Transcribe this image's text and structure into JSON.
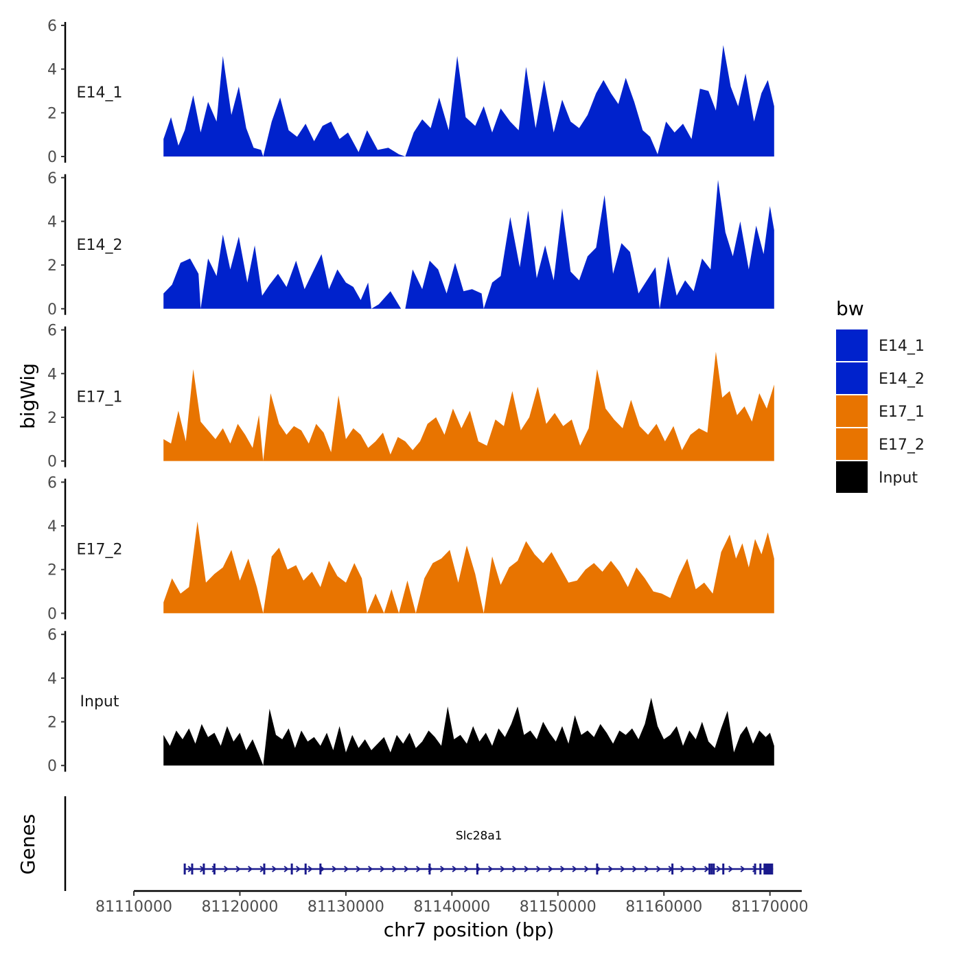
{
  "chart_data": {
    "type": "area",
    "chromosome": "chr7",
    "x_range": [
      81112800,
      81170400
    ],
    "xlim": [
      81110000,
      81173000
    ],
    "ylim": [
      0,
      6
    ],
    "y_ticks": [
      0,
      2,
      4,
      6
    ],
    "x_ticks": [
      81110000,
      81120000,
      81130000,
      81140000,
      81150000,
      81160000,
      81170000
    ],
    "x_tick_labels": [
      "81110000",
      "81120000",
      "81130000",
      "81140000",
      "81150000",
      "81160000",
      "81170000"
    ],
    "xlabel": "chr7 position (bp)",
    "ylabel": "bigWig",
    "genes_label": "Genes",
    "legend": {
      "title": "bw",
      "entries": [
        {
          "name": "E14_1",
          "color": "#0022CC"
        },
        {
          "name": "E14_2",
          "color": "#0022CC"
        },
        {
          "name": "E17_1",
          "color": "#E87400"
        },
        {
          "name": "E17_2",
          "color": "#E87400"
        },
        {
          "name": "Input",
          "color": "#000000"
        }
      ]
    },
    "series": [
      {
        "name": "E14_1",
        "color": "#0022CC",
        "x": [
          81112800,
          81113500,
          81114200,
          81114800,
          81115600,
          81116300,
          81117000,
          81117800,
          81118400,
          81119200,
          81119900,
          81120600,
          81121300,
          81122000,
          81122200,
          81123000,
          81123800,
          81124600,
          81125400,
          81126200,
          81127000,
          81127800,
          81128600,
          81129400,
          81130200,
          81131200,
          81132000,
          81133000,
          81134000,
          81135000,
          81135600,
          81136400,
          81137200,
          81138000,
          81138800,
          81139700,
          81140500,
          81141300,
          81142200,
          81143000,
          81143800,
          81144600,
          81145500,
          81146300,
          81147000,
          81147900,
          81148700,
          81149600,
          81150400,
          81151200,
          81152000,
          81152800,
          81153600,
          81154300,
          81155000,
          81155700,
          81156400,
          81157200,
          81158000,
          81158700,
          81159400,
          81160200,
          81161000,
          81161800,
          81162600,
          81163400,
          81164200,
          81164900,
          81165600,
          81166300,
          81167000,
          81167700,
          81168500,
          81169200,
          81169800,
          81170400
        ],
        "values": [
          0.8,
          1.8,
          0.5,
          1.2,
          2.8,
          1.1,
          2.5,
          1.6,
          4.6,
          1.9,
          3.2,
          1.3,
          0.4,
          0.3,
          0,
          1.6,
          2.7,
          1.2,
          0.9,
          1.5,
          0.7,
          1.4,
          1.6,
          0.8,
          1.1,
          0.2,
          1.2,
          0.3,
          0.4,
          0.1,
          0,
          1.1,
          1.7,
          1.3,
          2.7,
          1.2,
          4.6,
          1.8,
          1.4,
          2.3,
          1.1,
          2.2,
          1.6,
          1.2,
          4.1,
          1.3,
          3.5,
          1.1,
          2.6,
          1.6,
          1.3,
          1.9,
          2.9,
          3.5,
          2.9,
          2.4,
          3.6,
          2.5,
          1.2,
          0.9,
          0.1,
          1.6,
          1.1,
          1.5,
          0.8,
          3.1,
          3.0,
          2.1,
          5.1,
          3.2,
          2.3,
          3.8,
          1.6,
          2.9,
          3.5,
          2.3
        ]
      },
      {
        "name": "E14_2",
        "color": "#0022CC",
        "x": [
          81112800,
          81113600,
          81114400,
          81115300,
          81116100,
          81116300,
          81117000,
          81117800,
          81118400,
          81119100,
          81119900,
          81120700,
          81121400,
          81122100,
          81122800,
          81123600,
          81124400,
          81125300,
          81126100,
          81126900,
          81127700,
          81128400,
          81129200,
          81130000,
          81130700,
          81131400,
          81132100,
          81132400,
          81133100,
          81134200,
          81135200,
          81135600,
          81136300,
          81137200,
          81137900,
          81138700,
          81139500,
          81140300,
          81141100,
          81141900,
          81142800,
          81143000,
          81143800,
          81144600,
          81145500,
          81146400,
          81147200,
          81148000,
          81148800,
          81149600,
          81150400,
          81151200,
          81152000,
          81152800,
          81153600,
          81154400,
          81155200,
          81156000,
          81156800,
          81157600,
          81158400,
          81159200,
          81159600,
          81160400,
          81161200,
          81162000,
          81162800,
          81163600,
          81164400,
          81165100,
          81165800,
          81166500,
          81167200,
          81168000,
          81168700,
          81169400,
          81170000,
          81170400
        ],
        "values": [
          0.7,
          1.1,
          2.1,
          2.3,
          1.6,
          0,
          2.3,
          1.5,
          3.4,
          1.8,
          3.3,
          1.2,
          2.9,
          0.6,
          1.1,
          1.6,
          1.0,
          2.2,
          0.9,
          1.7,
          2.5,
          0.9,
          1.8,
          1.2,
          1.0,
          0.4,
          1.2,
          0,
          0.2,
          0.8,
          0,
          0,
          1.8,
          0.9,
          2.2,
          1.8,
          0.7,
          2.1,
          0.8,
          0.9,
          0.7,
          0,
          1.2,
          1.5,
          4.2,
          1.9,
          4.5,
          1.4,
          2.9,
          1.3,
          4.6,
          1.7,
          1.3,
          2.4,
          2.8,
          5.2,
          1.6,
          3.0,
          2.6,
          0.7,
          1.3,
          1.9,
          0,
          2.4,
          0.6,
          1.3,
          0.8,
          2.3,
          1.8,
          5.9,
          3.5,
          2.4,
          4.0,
          1.8,
          3.8,
          2.5,
          4.7,
          3.6
        ]
      },
      {
        "name": "E17_1",
        "color": "#E87400",
        "x": [
          81112800,
          81113500,
          81114200,
          81114900,
          81115600,
          81116300,
          81117000,
          81117700,
          81118400,
          81119100,
          81119800,
          81120500,
          81121200,
          81121800,
          81122200,
          81122900,
          81123700,
          81124400,
          81125100,
          81125800,
          81126500,
          81127200,
          81127900,
          81128600,
          81129300,
          81130000,
          81130700,
          81131400,
          81132100,
          81132800,
          81133500,
          81134200,
          81134900,
          81135600,
          81136300,
          81137000,
          81137700,
          81138500,
          81139300,
          81140100,
          81140900,
          81141700,
          81142500,
          81143300,
          81144100,
          81144900,
          81145700,
          81146500,
          81147300,
          81148100,
          81148900,
          81149700,
          81150500,
          81151300,
          81152100,
          81152900,
          81153700,
          81154500,
          81155300,
          81156100,
          81156900,
          81157700,
          81158500,
          81159300,
          81160100,
          81160900,
          81161700,
          81162500,
          81163300,
          81164100,
          81164900,
          81165500,
          81166200,
          81166900,
          81167600,
          81168300,
          81169000,
          81169700,
          81170400
        ],
        "values": [
          1.0,
          0.8,
          2.3,
          0.9,
          4.2,
          1.8,
          1.4,
          1.0,
          1.5,
          0.8,
          1.7,
          1.2,
          0.6,
          2.1,
          0,
          3.1,
          1.7,
          1.2,
          1.6,
          1.4,
          0.8,
          1.7,
          1.3,
          0.4,
          3.0,
          1.0,
          1.5,
          1.2,
          0.6,
          0.9,
          1.3,
          0.3,
          1.1,
          0.9,
          0.5,
          0.9,
          1.7,
          2.0,
          1.2,
          2.4,
          1.5,
          2.3,
          0.9,
          0.7,
          1.9,
          1.6,
          3.2,
          1.4,
          2.0,
          3.4,
          1.7,
          2.2,
          1.6,
          1.9,
          0.7,
          1.5,
          4.2,
          2.4,
          1.9,
          1.5,
          2.8,
          1.6,
          1.2,
          1.7,
          0.9,
          1.6,
          0.5,
          1.2,
          1.5,
          1.3,
          5.0,
          2.9,
          3.2,
          2.1,
          2.5,
          1.8,
          3.1,
          2.4,
          3.5
        ]
      },
      {
        "name": "E17_2",
        "color": "#E87400",
        "x": [
          81112800,
          81113600,
          81114400,
          81115200,
          81116000,
          81116800,
          81117600,
          81118400,
          81119200,
          81120000,
          81120800,
          81121600,
          81122200,
          81123000,
          81123700,
          81124500,
          81125300,
          81126000,
          81126800,
          81127600,
          81128400,
          81129200,
          81130000,
          81130800,
          81131500,
          81132000,
          81132800,
          81133600,
          81134300,
          81135000,
          81135800,
          81136600,
          81137400,
          81138200,
          81139000,
          81139800,
          81140600,
          81141400,
          81142200,
          81143000,
          81143800,
          81144600,
          81145400,
          81146200,
          81147000,
          81147800,
          81148600,
          81149400,
          81150200,
          81151000,
          81151800,
          81152600,
          81153400,
          81154200,
          81155000,
          81155800,
          81156600,
          81157400,
          81158200,
          81159000,
          81159800,
          81160600,
          81161400,
          81162200,
          81163000,
          81163800,
          81164600,
          81165400,
          81166200,
          81166800,
          81167400,
          81168000,
          81168600,
          81169200,
          81169800,
          81170400
        ],
        "values": [
          0.5,
          1.6,
          0.9,
          1.2,
          4.2,
          1.4,
          1.8,
          2.1,
          2.9,
          1.5,
          2.5,
          1.2,
          0,
          2.6,
          3.0,
          2.0,
          2.2,
          1.5,
          1.9,
          1.2,
          2.4,
          1.7,
          1.4,
          2.3,
          1.6,
          0,
          0.9,
          0,
          1.1,
          0,
          1.5,
          0,
          1.6,
          2.3,
          2.5,
          2.9,
          1.4,
          3.1,
          1.8,
          0,
          2.6,
          1.3,
          2.1,
          2.4,
          3.3,
          2.7,
          2.3,
          2.8,
          2.1,
          1.4,
          1.5,
          2.0,
          2.3,
          1.9,
          2.4,
          1.9,
          1.2,
          2.1,
          1.6,
          1.0,
          0.9,
          0.7,
          1.7,
          2.5,
          1.1,
          1.4,
          0.9,
          2.8,
          3.6,
          2.5,
          3.2,
          2.1,
          3.4,
          2.7,
          3.7,
          2.5
        ]
      },
      {
        "name": "Input",
        "color": "#000000",
        "x": [
          81112800,
          81113400,
          81114000,
          81114600,
          81115200,
          81115800,
          81116400,
          81117000,
          81117600,
          81118200,
          81118800,
          81119400,
          81120000,
          81120600,
          81121200,
          81121800,
          81122200,
          81122800,
          81123400,
          81124000,
          81124600,
          81125200,
          81125800,
          81126400,
          81127000,
          81127600,
          81128200,
          81128800,
          81129400,
          81130000,
          81130600,
          81131200,
          81131800,
          81132400,
          81133000,
          81133600,
          81134200,
          81134800,
          81135400,
          81136000,
          81136600,
          81137200,
          81137800,
          81138400,
          81139000,
          81139600,
          81140200,
          81140800,
          81141400,
          81142000,
          81142600,
          81143200,
          81143800,
          81144400,
          81145000,
          81145600,
          81146200,
          81146800,
          81147400,
          81148000,
          81148600,
          81149200,
          81149800,
          81150400,
          81151000,
          81151600,
          81152200,
          81152800,
          81153400,
          81154000,
          81154600,
          81155200,
          81155800,
          81156400,
          81157000,
          81157600,
          81158200,
          81158800,
          81159400,
          81160000,
          81160600,
          81161200,
          81161800,
          81162400,
          81163000,
          81163600,
          81164200,
          81164800,
          81165400,
          81166000,
          81166600,
          81167200,
          81167800,
          81168400,
          81169000,
          81169600,
          81170000,
          81170400
        ],
        "values": [
          1.4,
          0.9,
          1.6,
          1.2,
          1.7,
          1.0,
          1.9,
          1.3,
          1.5,
          0.9,
          1.8,
          1.1,
          1.5,
          0.7,
          1.2,
          0.5,
          0,
          2.6,
          1.4,
          1.2,
          1.7,
          0.8,
          1.6,
          1.1,
          1.3,
          0.9,
          1.5,
          0.7,
          1.8,
          0.6,
          1.4,
          0.8,
          1.2,
          0.7,
          1.0,
          1.3,
          0.6,
          1.4,
          1.0,
          1.5,
          0.8,
          1.1,
          1.6,
          1.3,
          0.9,
          2.7,
          1.2,
          1.4,
          1.0,
          1.8,
          1.1,
          1.5,
          0.9,
          1.7,
          1.3,
          1.9,
          2.7,
          1.4,
          1.6,
          1.2,
          2.0,
          1.5,
          1.1,
          1.8,
          1.0,
          2.3,
          1.4,
          1.6,
          1.3,
          1.9,
          1.5,
          1.0,
          1.6,
          1.4,
          1.7,
          1.2,
          1.9,
          3.1,
          1.8,
          1.2,
          1.4,
          1.8,
          0.9,
          1.6,
          1.2,
          2.0,
          1.1,
          0.8,
          1.7,
          2.5,
          0.6,
          1.4,
          1.8,
          1.0,
          1.6,
          1.3,
          1.5,
          0.9
        ]
      }
    ],
    "gene": {
      "name": "Slc28a1",
      "strand": "+",
      "start": 81114800,
      "end": 81170300,
      "color": "#1A1A8C",
      "exons": [
        81114800,
        81115500,
        81116600,
        81117600,
        81122300,
        81124900,
        81126200,
        81127600,
        81137900,
        81142400,
        81153700,
        81160800,
        81164300,
        81164500,
        81164700,
        81165600,
        81168600,
        81169100
      ]
    }
  }
}
